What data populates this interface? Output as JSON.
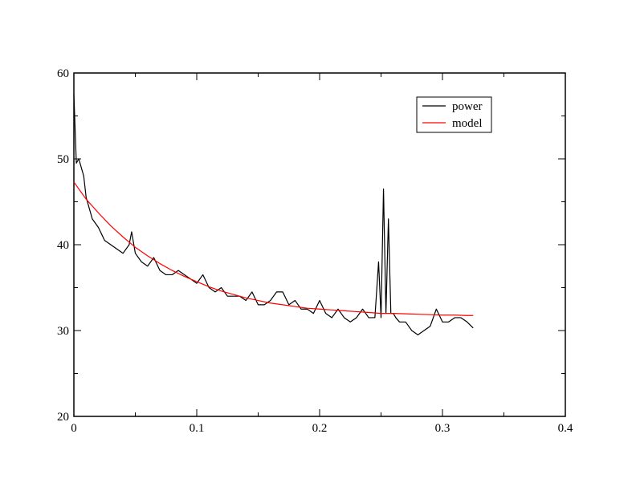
{
  "chart_data": {
    "type": "line",
    "title": "",
    "xlabel": "",
    "ylabel": "",
    "xlim": [
      0,
      0.4
    ],
    "ylim": [
      20,
      60
    ],
    "x_ticks": [
      0,
      0.1,
      0.2,
      0.3,
      0.4
    ],
    "x_tick_labels": [
      "0",
      "0.1",
      "0.2",
      "0.3",
      "0.4"
    ],
    "y_ticks": [
      20,
      30,
      40,
      50,
      60
    ],
    "y_tick_labels": [
      "20",
      "30",
      "40",
      "50",
      "60"
    ],
    "grid": false,
    "legend_position": "top-right",
    "series": [
      {
        "name": "power",
        "color": "#000000",
        "x": [
          0,
          0.002,
          0.004,
          0.006,
          0.008,
          0.01,
          0.015,
          0.02,
          0.025,
          0.03,
          0.035,
          0.04,
          0.045,
          0.047,
          0.05,
          0.055,
          0.06,
          0.065,
          0.07,
          0.075,
          0.08,
          0.085,
          0.09,
          0.095,
          0.1,
          0.105,
          0.11,
          0.115,
          0.12,
          0.125,
          0.13,
          0.135,
          0.14,
          0.145,
          0.15,
          0.155,
          0.16,
          0.165,
          0.17,
          0.175,
          0.18,
          0.185,
          0.19,
          0.195,
          0.2,
          0.205,
          0.21,
          0.215,
          0.22,
          0.225,
          0.23,
          0.235,
          0.24,
          0.245,
          0.248,
          0.25,
          0.252,
          0.254,
          0.256,
          0.258,
          0.26,
          0.262,
          0.265,
          0.27,
          0.275,
          0.28,
          0.285,
          0.29,
          0.295,
          0.3,
          0.305,
          0.31,
          0.315,
          0.32,
          0.325
        ],
        "values": [
          57.5,
          49.5,
          50,
          49,
          48,
          45.5,
          43,
          42,
          40.5,
          40,
          39.5,
          39,
          40,
          41.5,
          39,
          38,
          37.5,
          38.5,
          37,
          36.5,
          36.5,
          37,
          36.5,
          36,
          35.5,
          36.5,
          35,
          34.5,
          35,
          34,
          34,
          34,
          33.5,
          34.5,
          33,
          33,
          33.5,
          34.5,
          34.5,
          33,
          33.5,
          32.5,
          32.5,
          32,
          33.5,
          32,
          31.5,
          32.5,
          31.5,
          31,
          31.5,
          32.5,
          31.5,
          31.5,
          38,
          31.5,
          46.5,
          32,
          43,
          32,
          32,
          31.5,
          31,
          31,
          30,
          29.5,
          30,
          30.5,
          32.5,
          31,
          31,
          31.5,
          31.5,
          31,
          30.3
        ]
      },
      {
        "name": "model",
        "color": "#ff0000",
        "x": [
          0,
          0.01,
          0.02,
          0.03,
          0.04,
          0.05,
          0.06,
          0.07,
          0.08,
          0.09,
          0.1,
          0.11,
          0.12,
          0.13,
          0.14,
          0.15,
          0.16,
          0.17,
          0.18,
          0.19,
          0.2,
          0.21,
          0.22,
          0.23,
          0.24,
          0.25,
          0.26,
          0.27,
          0.28,
          0.29,
          0.3,
          0.31,
          0.32,
          0.325
        ],
        "values": [
          47.3,
          45.3,
          43.7,
          42.2,
          40.9,
          39.7,
          38.7,
          37.8,
          37.0,
          36.3,
          35.7,
          35.1,
          34.6,
          34.2,
          33.8,
          33.5,
          33.2,
          33.0,
          32.8,
          32.6,
          32.5,
          32.4,
          32.3,
          32.2,
          32.1,
          32.0,
          32.0,
          31.95,
          31.9,
          31.85,
          31.8,
          31.8,
          31.75,
          31.75
        ]
      }
    ]
  }
}
